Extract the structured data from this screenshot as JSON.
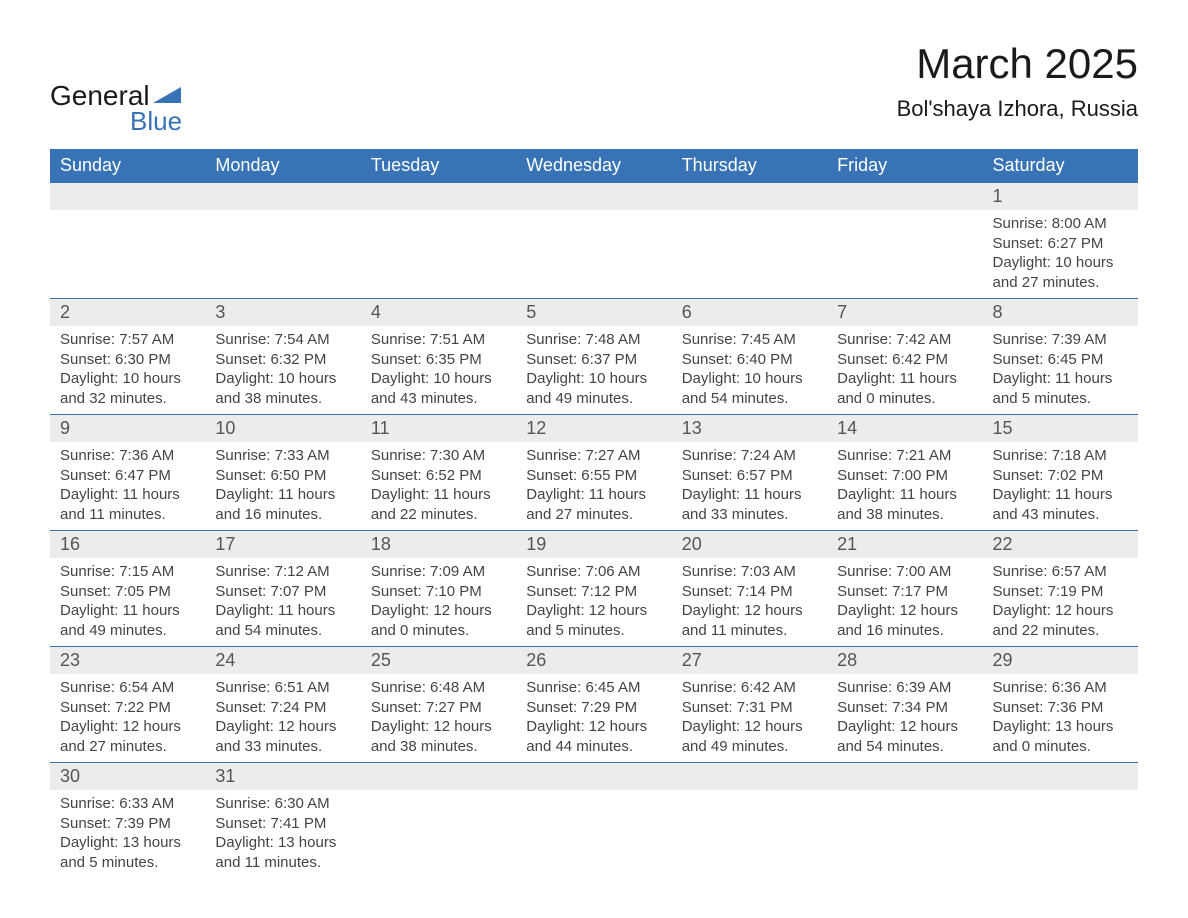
{
  "logo": {
    "text_general": "General",
    "text_blue": "Blue",
    "flag_color": "#3874b5"
  },
  "title": "March 2025",
  "location": "Bol'shaya Izhora, Russia",
  "colors": {
    "header_bg": "#3874b5",
    "header_text": "#ffffff",
    "daynum_bg": "#ececec",
    "daynum_text": "#555555",
    "detail_text": "#444444",
    "border": "#3874b5",
    "page_bg": "#ffffff"
  },
  "fonts": {
    "title_size": 42,
    "location_size": 22,
    "header_size": 18,
    "daynum_size": 18,
    "detail_size": 15
  },
  "weekdays": [
    "Sunday",
    "Monday",
    "Tuesday",
    "Wednesday",
    "Thursday",
    "Friday",
    "Saturday"
  ],
  "weeks": [
    [
      null,
      null,
      null,
      null,
      null,
      null,
      {
        "n": "1",
        "sunrise": "8:00 AM",
        "sunset": "6:27 PM",
        "daylight": "10 hours and 27 minutes."
      }
    ],
    [
      {
        "n": "2",
        "sunrise": "7:57 AM",
        "sunset": "6:30 PM",
        "daylight": "10 hours and 32 minutes."
      },
      {
        "n": "3",
        "sunrise": "7:54 AM",
        "sunset": "6:32 PM",
        "daylight": "10 hours and 38 minutes."
      },
      {
        "n": "4",
        "sunrise": "7:51 AM",
        "sunset": "6:35 PM",
        "daylight": "10 hours and 43 minutes."
      },
      {
        "n": "5",
        "sunrise": "7:48 AM",
        "sunset": "6:37 PM",
        "daylight": "10 hours and 49 minutes."
      },
      {
        "n": "6",
        "sunrise": "7:45 AM",
        "sunset": "6:40 PM",
        "daylight": "10 hours and 54 minutes."
      },
      {
        "n": "7",
        "sunrise": "7:42 AM",
        "sunset": "6:42 PM",
        "daylight": "11 hours and 0 minutes."
      },
      {
        "n": "8",
        "sunrise": "7:39 AM",
        "sunset": "6:45 PM",
        "daylight": "11 hours and 5 minutes."
      }
    ],
    [
      {
        "n": "9",
        "sunrise": "7:36 AM",
        "sunset": "6:47 PM",
        "daylight": "11 hours and 11 minutes."
      },
      {
        "n": "10",
        "sunrise": "7:33 AM",
        "sunset": "6:50 PM",
        "daylight": "11 hours and 16 minutes."
      },
      {
        "n": "11",
        "sunrise": "7:30 AM",
        "sunset": "6:52 PM",
        "daylight": "11 hours and 22 minutes."
      },
      {
        "n": "12",
        "sunrise": "7:27 AM",
        "sunset": "6:55 PM",
        "daylight": "11 hours and 27 minutes."
      },
      {
        "n": "13",
        "sunrise": "7:24 AM",
        "sunset": "6:57 PM",
        "daylight": "11 hours and 33 minutes."
      },
      {
        "n": "14",
        "sunrise": "7:21 AM",
        "sunset": "7:00 PM",
        "daylight": "11 hours and 38 minutes."
      },
      {
        "n": "15",
        "sunrise": "7:18 AM",
        "sunset": "7:02 PM",
        "daylight": "11 hours and 43 minutes."
      }
    ],
    [
      {
        "n": "16",
        "sunrise": "7:15 AM",
        "sunset": "7:05 PM",
        "daylight": "11 hours and 49 minutes."
      },
      {
        "n": "17",
        "sunrise": "7:12 AM",
        "sunset": "7:07 PM",
        "daylight": "11 hours and 54 minutes."
      },
      {
        "n": "18",
        "sunrise": "7:09 AM",
        "sunset": "7:10 PM",
        "daylight": "12 hours and 0 minutes."
      },
      {
        "n": "19",
        "sunrise": "7:06 AM",
        "sunset": "7:12 PM",
        "daylight": "12 hours and 5 minutes."
      },
      {
        "n": "20",
        "sunrise": "7:03 AM",
        "sunset": "7:14 PM",
        "daylight": "12 hours and 11 minutes."
      },
      {
        "n": "21",
        "sunrise": "7:00 AM",
        "sunset": "7:17 PM",
        "daylight": "12 hours and 16 minutes."
      },
      {
        "n": "22",
        "sunrise": "6:57 AM",
        "sunset": "7:19 PM",
        "daylight": "12 hours and 22 minutes."
      }
    ],
    [
      {
        "n": "23",
        "sunrise": "6:54 AM",
        "sunset": "7:22 PM",
        "daylight": "12 hours and 27 minutes."
      },
      {
        "n": "24",
        "sunrise": "6:51 AM",
        "sunset": "7:24 PM",
        "daylight": "12 hours and 33 minutes."
      },
      {
        "n": "25",
        "sunrise": "6:48 AM",
        "sunset": "7:27 PM",
        "daylight": "12 hours and 38 minutes."
      },
      {
        "n": "26",
        "sunrise": "6:45 AM",
        "sunset": "7:29 PM",
        "daylight": "12 hours and 44 minutes."
      },
      {
        "n": "27",
        "sunrise": "6:42 AM",
        "sunset": "7:31 PM",
        "daylight": "12 hours and 49 minutes."
      },
      {
        "n": "28",
        "sunrise": "6:39 AM",
        "sunset": "7:34 PM",
        "daylight": "12 hours and 54 minutes."
      },
      {
        "n": "29",
        "sunrise": "6:36 AM",
        "sunset": "7:36 PM",
        "daylight": "13 hours and 0 minutes."
      }
    ],
    [
      {
        "n": "30",
        "sunrise": "6:33 AM",
        "sunset": "7:39 PM",
        "daylight": "13 hours and 5 minutes."
      },
      {
        "n": "31",
        "sunrise": "6:30 AM",
        "sunset": "7:41 PM",
        "daylight": "13 hours and 11 minutes."
      },
      null,
      null,
      null,
      null,
      null
    ]
  ],
  "labels": {
    "sunrise_prefix": "Sunrise: ",
    "sunset_prefix": "Sunset: ",
    "daylight_prefix": "Daylight: "
  }
}
